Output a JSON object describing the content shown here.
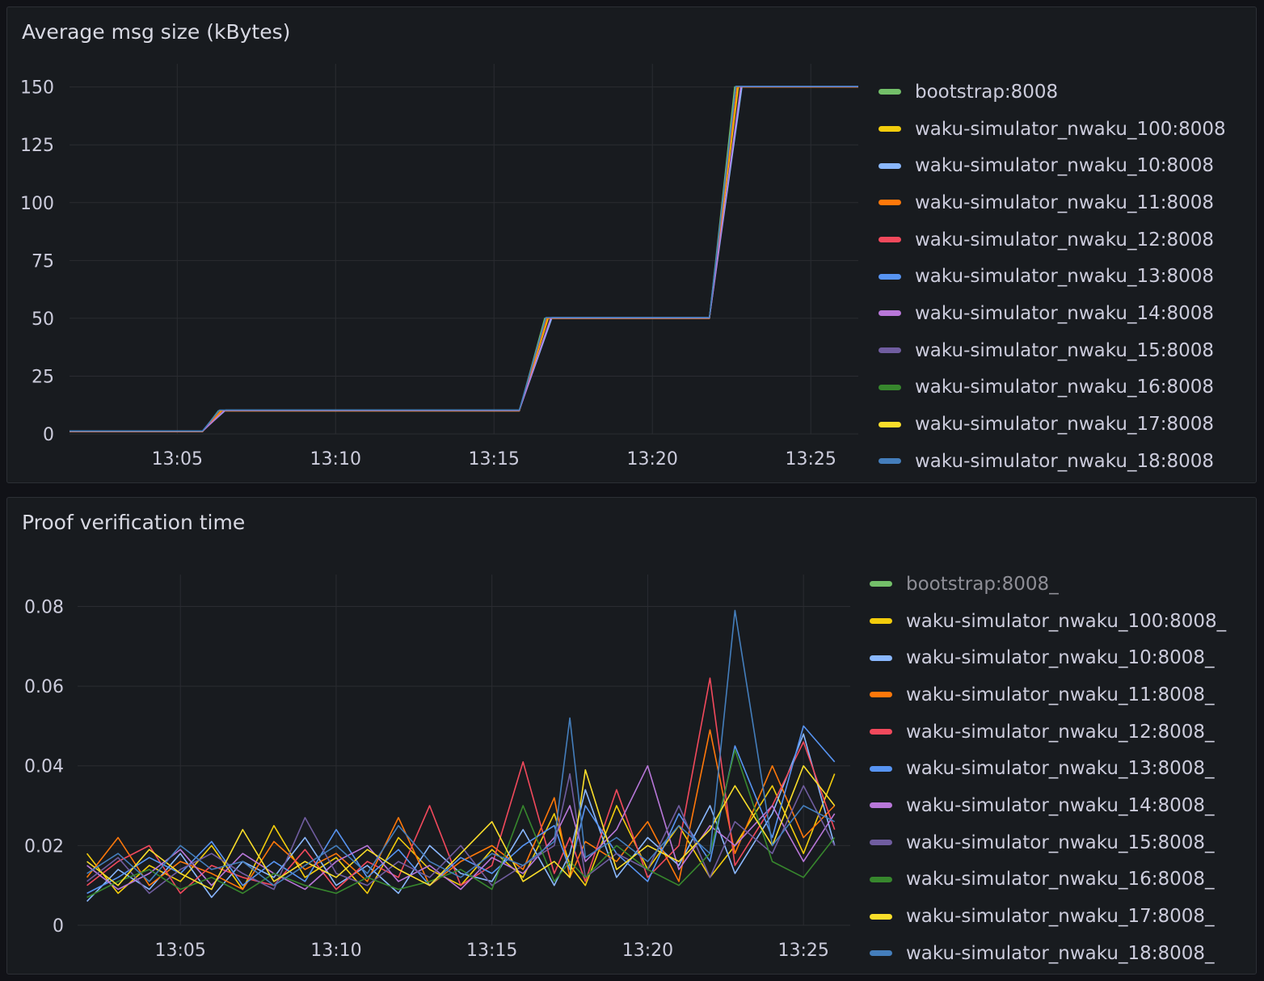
{
  "panels": [
    {
      "title": "Average msg size (kBytes)",
      "legend": [
        {
          "label": "bootstrap:8008",
          "color": "#73bf69"
        },
        {
          "label": "waku-simulator_nwaku_100:8008",
          "color": "#f2cc0c"
        },
        {
          "label": "waku-simulator_nwaku_10:8008",
          "color": "#8ab8ff"
        },
        {
          "label": "waku-simulator_nwaku_11:8008",
          "color": "#ff780a"
        },
        {
          "label": "waku-simulator_nwaku_12:8008",
          "color": "#f2495c"
        },
        {
          "label": "waku-simulator_nwaku_13:8008",
          "color": "#5794f2"
        },
        {
          "label": "waku-simulator_nwaku_14:8008",
          "color": "#b877d9"
        },
        {
          "label": "waku-simulator_nwaku_15:8008",
          "color": "#705da0"
        },
        {
          "label": "waku-simulator_nwaku_16:8008",
          "color": "#37872d"
        },
        {
          "label": "waku-simulator_nwaku_17:8008",
          "color": "#fade2a"
        },
        {
          "label": "waku-simulator_nwaku_18:8008",
          "color": "#447ebc"
        }
      ]
    },
    {
      "title": "Proof verification time",
      "legend": [
        {
          "label": "bootstrap:8008_",
          "color": "#73bf69",
          "hidden": true
        },
        {
          "label": "waku-simulator_nwaku_100:8008_",
          "color": "#f2cc0c"
        },
        {
          "label": "waku-simulator_nwaku_10:8008_",
          "color": "#8ab8ff"
        },
        {
          "label": "waku-simulator_nwaku_11:8008_",
          "color": "#ff780a"
        },
        {
          "label": "waku-simulator_nwaku_12:8008_",
          "color": "#f2495c"
        },
        {
          "label": "waku-simulator_nwaku_13:8008_",
          "color": "#5794f2"
        },
        {
          "label": "waku-simulator_nwaku_14:8008_",
          "color": "#b877d9"
        },
        {
          "label": "waku-simulator_nwaku_15:8008_",
          "color": "#705da0"
        },
        {
          "label": "waku-simulator_nwaku_16:8008_",
          "color": "#37872d"
        },
        {
          "label": "waku-simulator_nwaku_17:8008_",
          "color": "#fade2a"
        },
        {
          "label": "waku-simulator_nwaku_18:8008_",
          "color": "#447ebc"
        }
      ]
    }
  ],
  "chart_data": [
    {
      "type": "line",
      "title": "Average msg size (kBytes)",
      "xlim": [
        "13:01.6",
        "13:26.5"
      ],
      "ylim": [
        0,
        160
      ],
      "x_ticks": [
        "13:05",
        "13:10",
        "13:15",
        "13:20",
        "13:25"
      ],
      "y_ticks": [
        0,
        25,
        50,
        75,
        100,
        125,
        150
      ],
      "grid": true,
      "legend_placement": "right",
      "x": [
        "13:01.6",
        "13:05.8",
        "13:06.3",
        "13:15.8",
        "13:16.6",
        "13:21.8",
        "13:22.6",
        "13:26.5"
      ],
      "series": [
        {
          "name": "bootstrap:8008",
          "values": [
            1,
            1,
            10,
            10,
            50,
            50,
            150,
            150
          ]
        },
        {
          "name": "waku-simulator_nwaku_100:8008",
          "values": [
            1,
            1,
            10,
            10,
            50,
            50,
            150,
            150
          ]
        },
        {
          "name": "waku-simulator_nwaku_10:8008",
          "values": [
            1,
            1,
            10,
            10,
            50,
            50,
            150,
            150
          ]
        },
        {
          "name": "waku-simulator_nwaku_11:8008",
          "values": [
            1,
            1,
            10,
            10,
            50,
            50,
            150,
            150
          ]
        },
        {
          "name": "waku-simulator_nwaku_14:8008",
          "values": [
            1,
            1,
            10,
            10,
            50,
            50,
            150,
            150
          ]
        },
        {
          "name": "waku-simulator_nwaku_18:8008",
          "values": [
            1,
            1,
            10,
            10,
            50,
            50,
            150,
            150
          ]
        }
      ]
    },
    {
      "type": "line",
      "title": "Proof verification time",
      "xlim": [
        "13:01.7",
        "13:26.5"
      ],
      "ylim": [
        0,
        0.088
      ],
      "x_ticks": [
        "13:05",
        "13:10",
        "13:15",
        "13:20",
        "13:25"
      ],
      "y_ticks": [
        0,
        0.02,
        0.04,
        0.06,
        0.08
      ],
      "grid": true,
      "legend_placement": "right",
      "x": [
        "13:02",
        "13:03",
        "13:04",
        "13:05",
        "13:06",
        "13:07",
        "13:08",
        "13:09",
        "13:10",
        "13:11",
        "13:12",
        "13:13",
        "13:14",
        "13:15",
        "13:16",
        "13:17",
        "13:17.5",
        "13:18",
        "13:19",
        "13:20",
        "13:21",
        "13:22",
        "13:22.8",
        "13:24",
        "13:25",
        "13:26"
      ],
      "series": [
        {
          "name": "waku-simulator_nwaku_100:8008_",
          "values": [
            0.018,
            0.008,
            0.015,
            0.011,
            0.02,
            0.009,
            0.025,
            0.012,
            0.017,
            0.008,
            0.022,
            0.014,
            0.01,
            0.019,
            0.012,
            0.028,
            0.015,
            0.01,
            0.03,
            0.014,
            0.025,
            0.012,
            0.02,
            0.035,
            0.018,
            0.038
          ]
        },
        {
          "name": "waku-simulator_nwaku_10:8008_",
          "values": [
            0.006,
            0.014,
            0.009,
            0.018,
            0.007,
            0.016,
            0.012,
            0.022,
            0.01,
            0.015,
            0.008,
            0.02,
            0.013,
            0.011,
            0.024,
            0.01,
            0.018,
            0.034,
            0.012,
            0.022,
            0.015,
            0.03,
            0.013,
            0.028,
            0.048,
            0.02
          ]
        },
        {
          "name": "waku-simulator_nwaku_11:8008_",
          "values": [
            0.012,
            0.022,
            0.01,
            0.016,
            0.013,
            0.009,
            0.021,
            0.014,
            0.018,
            0.011,
            0.027,
            0.01,
            0.016,
            0.02,
            0.014,
            0.032,
            0.012,
            0.021,
            0.016,
            0.026,
            0.011,
            0.049,
            0.018,
            0.04,
            0.022,
            0.03
          ]
        },
        {
          "name": "waku-simulator_nwaku_12:8008_",
          "values": [
            0.01,
            0.016,
            0.02,
            0.008,
            0.015,
            0.012,
            0.01,
            0.019,
            0.009,
            0.016,
            0.012,
            0.03,
            0.01,
            0.015,
            0.041,
            0.013,
            0.022,
            0.011,
            0.034,
            0.012,
            0.02,
            0.062,
            0.015,
            0.03,
            0.046,
            0.024
          ]
        },
        {
          "name": "waku-simulator_nwaku_13:8008_",
          "values": [
            0.008,
            0.012,
            0.017,
            0.013,
            0.021,
            0.01,
            0.016,
            0.011,
            0.024,
            0.012,
            0.019,
            0.01,
            0.017,
            0.013,
            0.02,
            0.025,
            0.014,
            0.03,
            0.018,
            0.011,
            0.028,
            0.016,
            0.045,
            0.022,
            0.05,
            0.041
          ]
        },
        {
          "name": "waku-simulator_nwaku_14:8008_",
          "values": [
            0.015,
            0.009,
            0.013,
            0.019,
            0.01,
            0.018,
            0.013,
            0.009,
            0.016,
            0.02,
            0.011,
            0.015,
            0.009,
            0.017,
            0.013,
            0.022,
            0.03,
            0.016,
            0.024,
            0.04,
            0.014,
            0.025,
            0.02,
            0.03,
            0.016,
            0.028
          ]
        },
        {
          "name": "waku-simulator_nwaku_15:8008_",
          "values": [
            0.011,
            0.017,
            0.008,
            0.014,
            0.018,
            0.013,
            0.009,
            0.027,
            0.013,
            0.01,
            0.016,
            0.012,
            0.02,
            0.01,
            0.015,
            0.02,
            0.038,
            0.012,
            0.018,
            0.014,
            0.03,
            0.012,
            0.026,
            0.018,
            0.035,
            0.02
          ]
        },
        {
          "name": "waku-simulator_nwaku_16:8008_",
          "values": [
            0.007,
            0.011,
            0.014,
            0.009,
            0.012,
            0.008,
            0.013,
            0.01,
            0.008,
            0.012,
            0.009,
            0.011,
            0.014,
            0.009,
            0.03,
            0.011,
            0.016,
            0.012,
            0.02,
            0.014,
            0.01,
            0.018,
            0.044,
            0.016,
            0.012,
            0.022
          ]
        },
        {
          "name": "waku-simulator_nwaku_17:8008_",
          "values": [
            0.016,
            0.01,
            0.019,
            0.013,
            0.009,
            0.024,
            0.011,
            0.016,
            0.012,
            0.019,
            0.014,
            0.01,
            0.018,
            0.026,
            0.011,
            0.016,
            0.012,
            0.039,
            0.014,
            0.02,
            0.016,
            0.024,
            0.035,
            0.02,
            0.04,
            0.03
          ]
        },
        {
          "name": "waku-simulator_nwaku_18:8008_",
          "values": [
            0.013,
            0.018,
            0.011,
            0.02,
            0.014,
            0.016,
            0.01,
            0.015,
            0.02,
            0.013,
            0.025,
            0.016,
            0.012,
            0.018,
            0.015,
            0.021,
            0.052,
            0.017,
            0.022,
            0.016,
            0.025,
            0.018,
            0.079,
            0.02,
            0.03,
            0.026
          ]
        }
      ]
    }
  ]
}
